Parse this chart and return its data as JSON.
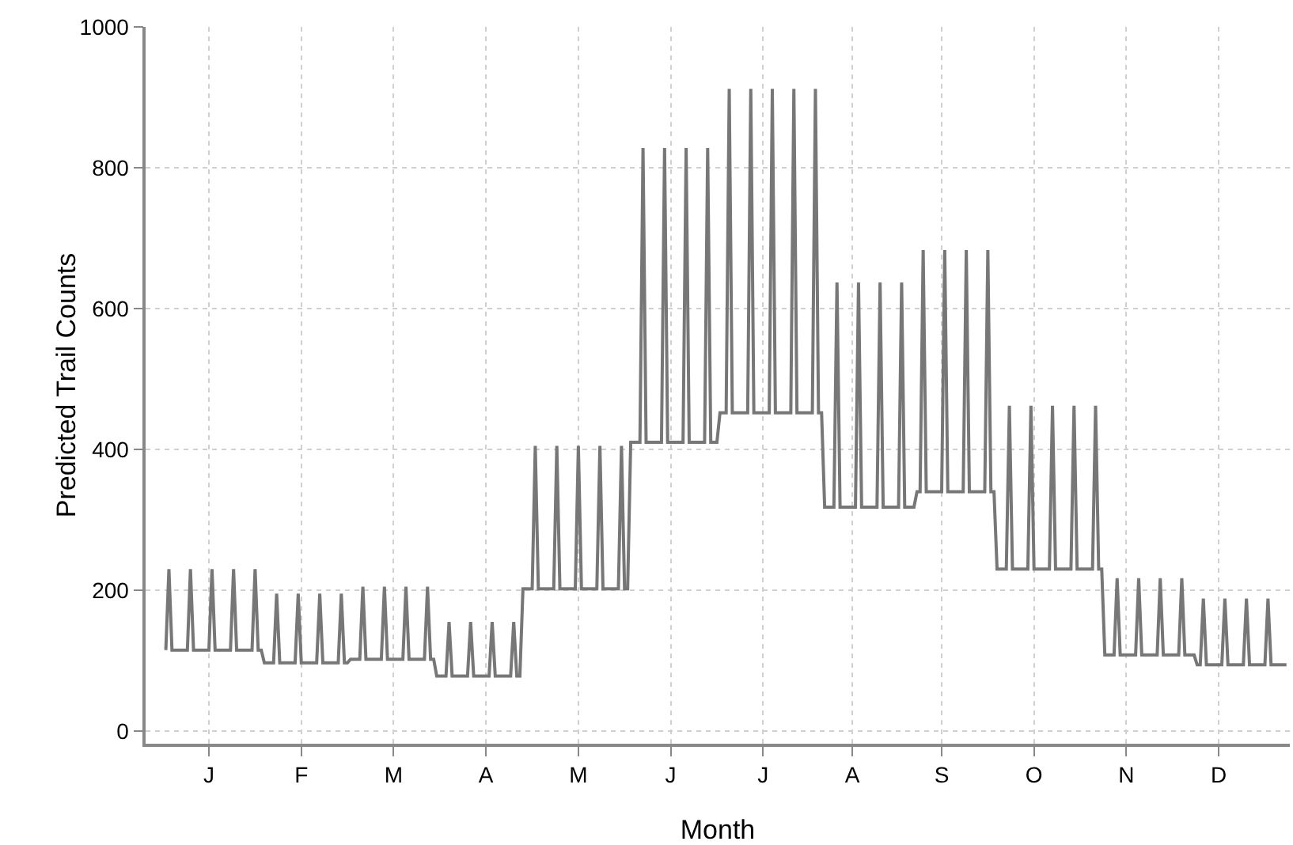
{
  "chart_data": {
    "type": "line",
    "xlabel": "Month",
    "ylabel": "Predicted Trail Counts",
    "categories": [
      null,
      null,
      null,
      null,
      null,
      null,
      null,
      null,
      null,
      null,
      null,
      null,
      null,
      null,
      "J",
      null,
      null,
      null,
      null,
      null,
      null,
      null,
      null,
      null,
      null,
      null,
      null,
      null,
      null,
      null,
      null,
      null,
      null,
      null,
      null,
      null,
      null,
      null,
      null,
      null,
      null,
      null,
      null,
      null,
      "F",
      null,
      null,
      null,
      null,
      null,
      null,
      null,
      null,
      null,
      null,
      null,
      null,
      null,
      null,
      null,
      null,
      null,
      null,
      null,
      null,
      null,
      null,
      null,
      null,
      null,
      null,
      null,
      null,
      null,
      "M",
      null,
      null,
      null,
      null,
      null,
      null,
      null,
      null,
      null,
      null,
      null,
      null,
      null,
      null,
      null,
      null,
      null,
      null,
      null,
      null,
      null,
      null,
      null,
      null,
      null,
      null,
      null,
      null,
      null,
      "A",
      null,
      null,
      null,
      null,
      null,
      null,
      null,
      null,
      null,
      null,
      null,
      null,
      null,
      null,
      null,
      null,
      null,
      null,
      null,
      null,
      null,
      null,
      null,
      null,
      null,
      null,
      null,
      null,
      null,
      "M",
      null,
      null,
      null,
      null,
      null,
      null,
      null,
      null,
      null,
      null,
      null,
      null,
      null,
      null,
      null,
      null,
      null,
      null,
      null,
      null,
      null,
      null,
      null,
      null,
      null,
      null,
      null,
      null,
      null,
      "J",
      null,
      null,
      null,
      null,
      null,
      null,
      null,
      null,
      null,
      null,
      null,
      null,
      null,
      null,
      null,
      null,
      null,
      null,
      null,
      null,
      null,
      null,
      null,
      null,
      null,
      null,
      null,
      null,
      null,
      "J",
      null,
      null,
      null,
      null,
      null,
      null,
      null,
      null,
      null,
      null,
      null,
      null,
      null,
      null,
      null,
      null,
      null,
      null,
      null,
      null,
      null,
      null,
      null,
      null,
      null,
      null,
      null,
      null,
      "A",
      null,
      null,
      null,
      null,
      null,
      null,
      null,
      null,
      null,
      null,
      null,
      null,
      null,
      null,
      null,
      null,
      null,
      null,
      null,
      null,
      null,
      null,
      null,
      null,
      null,
      null,
      null,
      null,
      "S",
      null,
      null,
      null,
      null,
      null,
      null,
      null,
      null,
      null,
      null,
      null,
      null,
      null,
      null,
      null,
      null,
      null,
      null,
      null,
      null,
      null,
      null,
      null,
      null,
      null,
      null,
      null,
      null,
      null,
      "O",
      null,
      null,
      null,
      null,
      null,
      null,
      null,
      null,
      null,
      null,
      null,
      null,
      null,
      null,
      null,
      null,
      null,
      null,
      null,
      null,
      null,
      null,
      null,
      null,
      null,
      null,
      null,
      null,
      null,
      "N",
      null,
      null,
      null,
      null,
      null,
      null,
      null,
      null,
      null,
      null,
      null,
      null,
      null,
      null,
      null,
      null,
      null,
      null,
      null,
      null,
      null,
      null,
      null,
      null,
      null,
      null,
      null,
      null,
      null,
      "D",
      null,
      null,
      null,
      null,
      null,
      null,
      null,
      null,
      null,
      null,
      null,
      null,
      null,
      null,
      null,
      null,
      null,
      null,
      null,
      null,
      null,
      null
    ],
    "ylim": [
      -18,
      1000
    ],
    "yticks": [
      0,
      200,
      400,
      600,
      800,
      1000
    ],
    "grid": true,
    "line_style": "solid",
    "marker": "none",
    "series": [
      {
        "color": "#777777",
        "values": [
          115,
          230,
          115,
          115,
          115,
          115,
          115,
          115,
          230,
          115,
          115,
          115,
          115,
          115,
          115,
          230,
          115,
          115,
          115,
          115,
          115,
          115,
          230,
          115,
          115,
          115,
          115,
          115,
          115,
          230,
          115,
          115,
          97,
          97,
          97,
          97,
          195,
          97,
          97,
          97,
          97,
          97,
          97,
          195,
          97,
          97,
          97,
          97,
          97,
          97,
          195,
          97,
          97,
          97,
          97,
          97,
          97,
          195,
          97,
          97,
          102,
          102,
          102,
          102,
          205,
          102,
          102,
          102,
          102,
          102,
          102,
          205,
          102,
          102,
          102,
          102,
          102,
          102,
          205,
          102,
          102,
          102,
          102,
          102,
          102,
          205,
          102,
          102,
          78,
          78,
          78,
          78,
          155,
          78,
          78,
          78,
          78,
          78,
          78,
          155,
          78,
          78,
          78,
          78,
          78,
          78,
          155,
          78,
          78,
          78,
          78,
          78,
          78,
          155,
          78,
          78,
          202,
          202,
          202,
          202,
          405,
          202,
          202,
          202,
          202,
          202,
          202,
          405,
          202,
          202,
          202,
          202,
          202,
          202,
          405,
          202,
          202,
          202,
          202,
          202,
          202,
          405,
          202,
          202,
          202,
          202,
          202,
          202,
          405,
          202,
          202,
          410,
          410,
          410,
          410,
          828,
          410,
          410,
          410,
          410,
          410,
          410,
          828,
          410,
          410,
          410,
          410,
          410,
          410,
          828,
          410,
          410,
          410,
          410,
          410,
          410,
          828,
          410,
          410,
          410,
          452,
          452,
          452,
          912,
          452,
          452,
          452,
          452,
          452,
          452,
          912,
          452,
          452,
          452,
          452,
          452,
          452,
          912,
          452,
          452,
          452,
          452,
          452,
          452,
          912,
          452,
          452,
          452,
          452,
          452,
          452,
          912,
          452,
          452,
          318,
          318,
          318,
          318,
          637,
          318,
          318,
          318,
          318,
          318,
          318,
          637,
          318,
          318,
          318,
          318,
          318,
          318,
          637,
          318,
          318,
          318,
          318,
          318,
          318,
          637,
          318,
          318,
          318,
          318,
          340,
          340,
          683,
          340,
          340,
          340,
          340,
          340,
          340,
          683,
          340,
          340,
          340,
          340,
          340,
          340,
          683,
          340,
          340,
          340,
          340,
          340,
          340,
          683,
          340,
          340,
          230,
          230,
          230,
          230,
          462,
          230,
          230,
          230,
          230,
          230,
          230,
          462,
          230,
          230,
          230,
          230,
          230,
          230,
          462,
          230,
          230,
          230,
          230,
          230,
          230,
          462,
          230,
          230,
          230,
          230,
          230,
          230,
          462,
          230,
          230,
          108,
          108,
          108,
          108,
          217,
          108,
          108,
          108,
          108,
          108,
          108,
          217,
          108,
          108,
          108,
          108,
          108,
          108,
          217,
          108,
          108,
          108,
          108,
          108,
          108,
          217,
          108,
          108,
          108,
          108,
          94,
          94,
          188,
          94,
          94,
          94,
          94,
          94,
          94,
          188,
          94,
          94,
          94,
          94,
          94,
          94,
          188,
          94,
          94,
          94,
          94,
          94,
          94,
          188,
          94,
          94,
          94,
          94,
          94,
          94
        ]
      }
    ]
  }
}
